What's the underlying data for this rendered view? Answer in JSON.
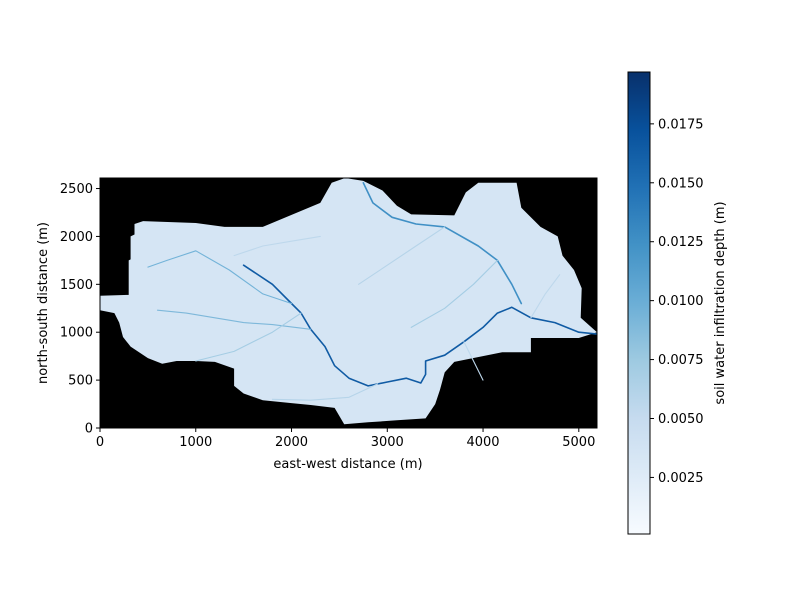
{
  "chart_data": {
    "type": "heatmap",
    "title": "",
    "xlabel": "east-west distance (m)",
    "ylabel": "north-south distance (m)",
    "xlim": [
      0,
      5190
    ],
    "ylim": [
      0,
      2610
    ],
    "x_ticks": [
      0,
      1000,
      2000,
      3000,
      4000,
      5000
    ],
    "y_ticks": [
      0,
      500,
      1000,
      1500,
      2000,
      2500
    ],
    "x_tick_labels": [
      "0",
      "1000",
      "2000",
      "3000",
      "4000",
      "5000"
    ],
    "y_tick_labels": [
      "0",
      "500",
      "1000",
      "1500",
      "2000",
      "2500"
    ],
    "background_color": "#000000",
    "colormap": "Blues",
    "colorbar": {
      "label": "soil water infiltration depth (m)",
      "min": 0.0001,
      "max": 0.0197,
      "ticks": [
        0.0025,
        0.005,
        0.0075,
        0.01,
        0.0125,
        0.015,
        0.0175
      ],
      "tick_labels": [
        "0.0025",
        "0.0050",
        "0.0075",
        "0.0100",
        "0.0125",
        "0.0150",
        "0.0175"
      ],
      "colors": [
        "#f7fbff",
        "#deebf7",
        "#c6dbef",
        "#9ecae1",
        "#6baed6",
        "#4292c6",
        "#2171b5",
        "#08519c",
        "#08306b"
      ]
    },
    "typical_hillslope_value": 0.0035,
    "domain_outline": [
      [
        0,
        1380
      ],
      [
        300,
        1390
      ],
      [
        300,
        1750
      ],
      [
        320,
        1760
      ],
      [
        320,
        2000
      ],
      [
        360,
        2020
      ],
      [
        360,
        2130
      ],
      [
        450,
        2160
      ],
      [
        1000,
        2140
      ],
      [
        1300,
        2100
      ],
      [
        1700,
        2100
      ],
      [
        2300,
        2350
      ],
      [
        2420,
        2560
      ],
      [
        2560,
        2610
      ],
      [
        2750,
        2580
      ],
      [
        2950,
        2480
      ],
      [
        3100,
        2320
      ],
      [
        3250,
        2230
      ],
      [
        3700,
        2220
      ],
      [
        3820,
        2460
      ],
      [
        3950,
        2560
      ],
      [
        4350,
        2560
      ],
      [
        4400,
        2300
      ],
      [
        4600,
        2100
      ],
      [
        4780,
        2000
      ],
      [
        4830,
        1800
      ],
      [
        4950,
        1650
      ],
      [
        5030,
        1460
      ],
      [
        5020,
        1150
      ],
      [
        5190,
        1000
      ],
      [
        5000,
        940
      ],
      [
        4500,
        940
      ],
      [
        4500,
        790
      ],
      [
        4200,
        790
      ],
      [
        3700,
        690
      ],
      [
        3600,
        580
      ],
      [
        3550,
        400
      ],
      [
        3500,
        250
      ],
      [
        3400,
        100
      ],
      [
        3100,
        80
      ],
      [
        2800,
        60
      ],
      [
        2550,
        40
      ],
      [
        2450,
        210
      ],
      [
        2200,
        240
      ],
      [
        2000,
        260
      ],
      [
        1700,
        290
      ],
      [
        1500,
        360
      ],
      [
        1400,
        440
      ],
      [
        1400,
        620
      ],
      [
        1200,
        690
      ],
      [
        1000,
        700
      ],
      [
        800,
        700
      ],
      [
        650,
        670
      ],
      [
        500,
        730
      ],
      [
        320,
        850
      ],
      [
        240,
        950
      ],
      [
        200,
        1100
      ],
      [
        150,
        1200
      ],
      [
        0,
        1230
      ]
    ],
    "channels": [
      {
        "value": 0.0165,
        "points": [
          [
            1500,
            1700
          ],
          [
            1800,
            1500
          ],
          [
            2000,
            1300
          ],
          [
            2100,
            1200
          ],
          [
            2200,
            1030
          ],
          [
            2350,
            850
          ],
          [
            2450,
            650
          ],
          [
            2600,
            520
          ],
          [
            2800,
            440
          ],
          [
            3000,
            480
          ],
          [
            3200,
            520
          ],
          [
            3350,
            470
          ],
          [
            3400,
            560
          ],
          [
            3400,
            700
          ],
          [
            3600,
            760
          ],
          [
            3800,
            900
          ],
          [
            4000,
            1050
          ],
          [
            4150,
            1200
          ],
          [
            4300,
            1260
          ],
          [
            4500,
            1150
          ],
          [
            4750,
            1100
          ],
          [
            5000,
            1000
          ],
          [
            5190,
            980
          ]
        ]
      },
      {
        "value": 0.0125,
        "points": [
          [
            2750,
            2560
          ],
          [
            2850,
            2350
          ],
          [
            3050,
            2200
          ],
          [
            3300,
            2130
          ],
          [
            3600,
            2100
          ],
          [
            3950,
            1900
          ],
          [
            4150,
            1750
          ],
          [
            4300,
            1500
          ],
          [
            4400,
            1300
          ]
        ]
      },
      {
        "value": 0.0095,
        "points": [
          [
            2000,
            1300
          ],
          [
            1700,
            1400
          ],
          [
            1350,
            1650
          ],
          [
            1000,
            1850
          ],
          [
            700,
            1750
          ],
          [
            500,
            1680
          ]
        ]
      },
      {
        "value": 0.009,
        "points": [
          [
            2200,
            1030
          ],
          [
            1800,
            1080
          ],
          [
            1500,
            1100
          ],
          [
            1200,
            1150
          ],
          [
            900,
            1200
          ],
          [
            600,
            1230
          ]
        ]
      },
      {
        "value": 0.007,
        "points": [
          [
            3250,
            1050
          ],
          [
            3600,
            1250
          ],
          [
            3900,
            1500
          ],
          [
            4150,
            1750
          ]
        ]
      },
      {
        "value": 0.007,
        "points": [
          [
            2100,
            1200
          ],
          [
            1800,
            1000
          ],
          [
            1400,
            800
          ],
          [
            1000,
            700
          ]
        ]
      },
      {
        "value": 0.006,
        "points": [
          [
            2900,
            460
          ],
          [
            2600,
            320
          ],
          [
            2200,
            290
          ],
          [
            1800,
            300
          ]
        ]
      },
      {
        "value": 0.006,
        "points": [
          [
            3600,
            2100
          ],
          [
            3300,
            1900
          ],
          [
            3000,
            1700
          ],
          [
            2700,
            1500
          ]
        ]
      },
      {
        "value": 0.0055,
        "points": [
          [
            1400,
            1800
          ],
          [
            1700,
            1900
          ],
          [
            2000,
            1950
          ],
          [
            2300,
            2000
          ]
        ]
      },
      {
        "value": 0.0055,
        "points": [
          [
            4500,
            1150
          ],
          [
            4650,
            1400
          ],
          [
            4800,
            1600
          ]
        ]
      },
      {
        "value": 0.0055,
        "points": [
          [
            3800,
            900
          ],
          [
            3900,
            700
          ],
          [
            4000,
            500
          ]
        ]
      }
    ]
  }
}
